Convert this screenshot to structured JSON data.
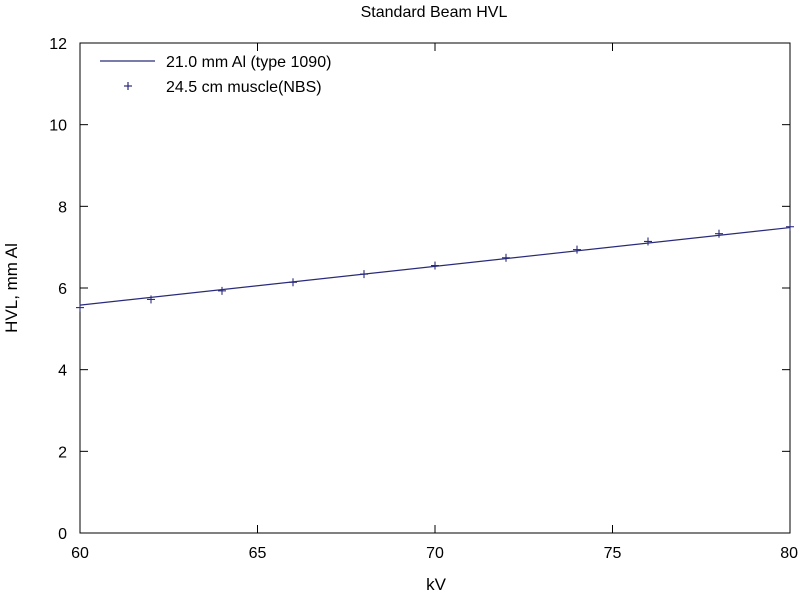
{
  "chart_data": {
    "type": "line",
    "title": "Standard Beam HVL",
    "xlabel": "kV",
    "ylabel": "HVL, mm Al",
    "xlim": [
      60,
      80
    ],
    "ylim": [
      0,
      12
    ],
    "xticks": [
      60,
      65,
      70,
      75,
      80
    ],
    "yticks": [
      0,
      2,
      4,
      6,
      8,
      10,
      12
    ],
    "grid": false,
    "legend_position": "top-left",
    "series": [
      {
        "name": "21.0 mm Al (type 1090)",
        "style": "line",
        "color": "#2a2a7a",
        "x": [
          60,
          80
        ],
        "y": [
          5.58,
          7.48
        ]
      },
      {
        "name": "24.5 cm muscle(NBS)",
        "style": "plus-markers",
        "color": "#2a2a7a",
        "x": [
          60,
          62,
          64,
          66,
          68,
          70,
          72,
          74,
          76,
          78,
          80
        ],
        "y": [
          5.52,
          5.72,
          5.93,
          6.14,
          6.34,
          6.55,
          6.74,
          6.94,
          7.14,
          7.33,
          7.5
        ]
      }
    ]
  }
}
